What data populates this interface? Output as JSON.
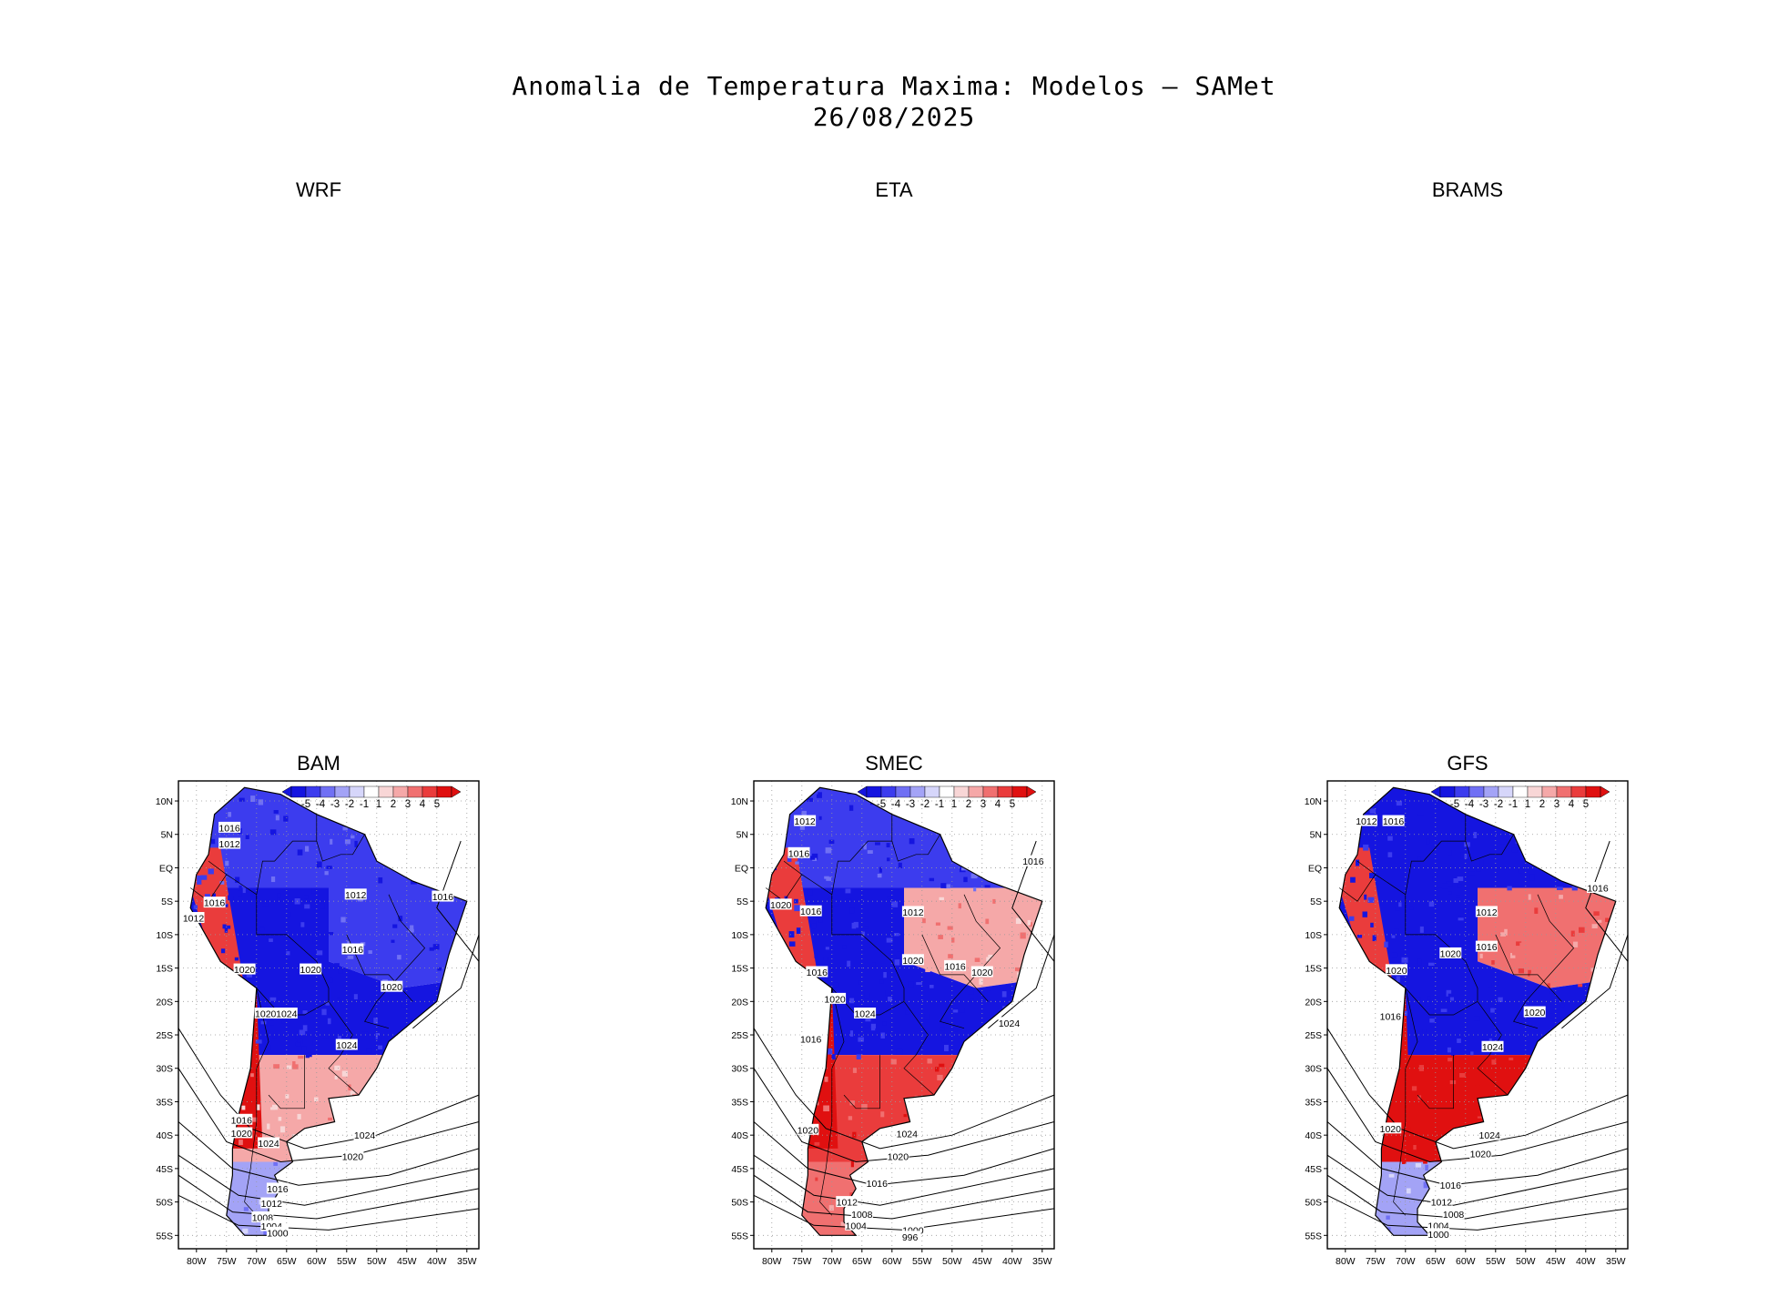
{
  "figure": {
    "title": "Anomalia de Temperatura Maxima: Modelos — SAMet",
    "date": "26/08/2025"
  },
  "colors": {
    "neg5": "#1515e0",
    "neg4": "#3c3cee",
    "neg3": "#7070f4",
    "neg2": "#a3a3f6",
    "neg1": "#d6d6fa",
    "zero": "#ffffff",
    "pos1": "#f8d6d6",
    "pos2": "#f5a8a8",
    "pos3": "#f07070",
    "pos4": "#ea3c3c",
    "pos5": "#e01010"
  },
  "chart_data": [
    {
      "type": "heatmap",
      "title": "WRF",
      "empty": true
    },
    {
      "type": "heatmap",
      "title": "ETA",
      "empty": true
    },
    {
      "type": "heatmap",
      "title": "BRAMS",
      "empty": true
    },
    {
      "type": "heatmap",
      "title": "BAM",
      "xlabel": "",
      "ylabel": "",
      "x_ticks": [
        "80W",
        "75W",
        "70W",
        "65W",
        "60W",
        "55W",
        "50W",
        "45W",
        "40W",
        "35W"
      ],
      "y_ticks": [
        "10N",
        "5N",
        "EQ",
        "5S",
        "10S",
        "15S",
        "20S",
        "25S",
        "30S",
        "35S",
        "40S",
        "45S",
        "50S",
        "55S"
      ],
      "colorbar": {
        "labels": [
          "-5",
          "-4",
          "-3",
          "-2",
          "-1",
          "1",
          "2",
          "3",
          "4",
          "5"
        ]
      },
      "xlim": [
        -83,
        -33
      ],
      "ylim": [
        -57,
        13
      ],
      "anomaly_regions": [
        {
          "name": "north-amazon",
          "anomaly": -4
        },
        {
          "name": "central-brazil",
          "anomaly": -5
        },
        {
          "name": "northeast-brazil",
          "anomaly": -4
        },
        {
          "name": "peru-coast",
          "anomaly": 4
        },
        {
          "name": "chile-andes",
          "anomaly": 5
        },
        {
          "name": "argentina-central",
          "anomaly": 2
        },
        {
          "name": "patagonia",
          "anomaly": -2
        }
      ],
      "isobars": [
        {
          "label": "1016",
          "lon": -74.5,
          "lat": 6.0
        },
        {
          "label": "1012",
          "lon": -74.5,
          "lat": 3.6
        },
        {
          "label": "1012",
          "lon": -53.5,
          "lat": -4.0
        },
        {
          "label": "1016",
          "lon": -39.0,
          "lat": -4.3
        },
        {
          "label": "1016",
          "lon": -77.0,
          "lat": -5.2
        },
        {
          "label": "1012",
          "lon": -80.5,
          "lat": -7.5
        },
        {
          "label": "1016",
          "lon": -54.0,
          "lat": -12.2
        },
        {
          "label": "1020",
          "lon": -72.0,
          "lat": -15.2
        },
        {
          "label": "1020",
          "lon": -61.0,
          "lat": -15.2
        },
        {
          "label": "1020",
          "lon": -47.5,
          "lat": -17.8
        },
        {
          "label": "1020",
          "lon": -68.5,
          "lat": -21.8
        },
        {
          "label": "1024",
          "lon": -65.0,
          "lat": -21.8
        },
        {
          "label": "1024",
          "lon": -55.0,
          "lat": -26.5
        },
        {
          "label": "1016",
          "lon": -72.5,
          "lat": -37.7
        },
        {
          "label": "1020",
          "lon": -72.5,
          "lat": -39.7
        },
        {
          "label": "1024",
          "lon": -68.0,
          "lat": -41.2
        },
        {
          "label": "1024",
          "lon": -52.0,
          "lat": -40.0
        },
        {
          "label": "1020",
          "lon": -54.0,
          "lat": -43.2
        },
        {
          "label": "1016",
          "lon": -66.5,
          "lat": -48.0
        },
        {
          "label": "1012",
          "lon": -67.5,
          "lat": -50.2
        },
        {
          "label": "1008",
          "lon": -69.0,
          "lat": -52.3
        },
        {
          "label": "1004",
          "lon": -67.5,
          "lat": -53.6
        },
        {
          "label": "1000",
          "lon": -66.5,
          "lat": -54.6
        }
      ]
    },
    {
      "type": "heatmap",
      "title": "SMEC",
      "xlabel": "",
      "ylabel": "",
      "x_ticks": [
        "80W",
        "75W",
        "70W",
        "65W",
        "60W",
        "55W",
        "50W",
        "45W",
        "40W",
        "35W"
      ],
      "y_ticks": [
        "10N",
        "5N",
        "EQ",
        "5S",
        "10S",
        "15S",
        "20S",
        "25S",
        "30S",
        "35S",
        "40S",
        "45S",
        "50S",
        "55S"
      ],
      "colorbar": {
        "labels": [
          "-5",
          "-4",
          "-3",
          "-2",
          "-1",
          "1",
          "2",
          "3",
          "4",
          "5"
        ]
      },
      "xlim": [
        -83,
        -33
      ],
      "ylim": [
        -57,
        13
      ],
      "anomaly_regions": [
        {
          "name": "north-amazon",
          "anomaly": -4
        },
        {
          "name": "central-brazil",
          "anomaly": -5
        },
        {
          "name": "northeast-brazil",
          "anomaly": 2
        },
        {
          "name": "peru-coast",
          "anomaly": 4
        },
        {
          "name": "chile-andes",
          "anomaly": 5
        },
        {
          "name": "argentina-central",
          "anomaly": 4
        },
        {
          "name": "patagonia",
          "anomaly": 3
        }
      ],
      "isobars": [
        {
          "label": "1012",
          "lon": -74.5,
          "lat": 7.0
        },
        {
          "label": "1016",
          "lon": -75.5,
          "lat": 2.2
        },
        {
          "label": "1016",
          "lon": -36.5,
          "lat": 1.0
        },
        {
          "label": "1012",
          "lon": -56.5,
          "lat": -6.6
        },
        {
          "label": "1020",
          "lon": -78.5,
          "lat": -5.5
        },
        {
          "label": "1016",
          "lon": -73.5,
          "lat": -6.5
        },
        {
          "label": "1020",
          "lon": -56.5,
          "lat": -13.8
        },
        {
          "label": "1016",
          "lon": -49.5,
          "lat": -14.7
        },
        {
          "label": "1016",
          "lon": -72.5,
          "lat": -15.6
        },
        {
          "label": "1020",
          "lon": -45.0,
          "lat": -15.6
        },
        {
          "label": "1020",
          "lon": -69.5,
          "lat": -19.6
        },
        {
          "label": "1024",
          "lon": -64.5,
          "lat": -21.8
        },
        {
          "label": "1024",
          "lon": -40.5,
          "lat": -23.2
        },
        {
          "label": "1016",
          "lon": -73.5,
          "lat": -25.6
        },
        {
          "label": "1020",
          "lon": -74.0,
          "lat": -39.2
        },
        {
          "label": "1024",
          "lon": -57.5,
          "lat": -39.8
        },
        {
          "label": "1020",
          "lon": -59.0,
          "lat": -43.2
        },
        {
          "label": "1016",
          "lon": -62.5,
          "lat": -47.2
        },
        {
          "label": "1012",
          "lon": -67.5,
          "lat": -50.0
        },
        {
          "label": "1008",
          "lon": -65.0,
          "lat": -51.8
        },
        {
          "label": "1004",
          "lon": -66.0,
          "lat": -53.5
        },
        {
          "label": "1000",
          "lon": -56.5,
          "lat": -54.2
        },
        {
          "label": "996",
          "lon": -57.0,
          "lat": -55.2
        }
      ]
    },
    {
      "type": "heatmap",
      "title": "GFS",
      "xlabel": "",
      "ylabel": "",
      "x_ticks": [
        "80W",
        "75W",
        "70W",
        "65W",
        "60W",
        "55W",
        "50W",
        "45W",
        "40W",
        "35W"
      ],
      "y_ticks": [
        "10N",
        "5N",
        "EQ",
        "5S",
        "10S",
        "15S",
        "20S",
        "25S",
        "30S",
        "35S",
        "40S",
        "45S",
        "50S",
        "55S"
      ],
      "colorbar": {
        "labels": [
          "-5",
          "-4",
          "-3",
          "-2",
          "-1",
          "1",
          "2",
          "3",
          "4",
          "5"
        ]
      },
      "xlim": [
        -83,
        -33
      ],
      "ylim": [
        -57,
        13
      ],
      "anomaly_regions": [
        {
          "name": "north-amazon",
          "anomaly": -5
        },
        {
          "name": "central-brazil",
          "anomaly": -5
        },
        {
          "name": "northeast-brazil",
          "anomaly": 3
        },
        {
          "name": "peru-coast",
          "anomaly": 4
        },
        {
          "name": "chile-andes",
          "anomaly": 5
        },
        {
          "name": "argentina-central",
          "anomaly": 5
        },
        {
          "name": "patagonia",
          "anomaly": -2
        }
      ],
      "isobars": [
        {
          "label": "1012",
          "lon": -76.5,
          "lat": 7.0
        },
        {
          "label": "1016",
          "lon": -72.0,
          "lat": 7.0
        },
        {
          "label": "1016",
          "lon": -38.0,
          "lat": -3.0
        },
        {
          "label": "1012",
          "lon": -56.5,
          "lat": -6.6
        },
        {
          "label": "1020",
          "lon": -62.5,
          "lat": -12.8
        },
        {
          "label": "1016",
          "lon": -56.5,
          "lat": -11.8
        },
        {
          "label": "1020",
          "lon": -71.5,
          "lat": -15.3
        },
        {
          "label": "1020",
          "lon": -48.5,
          "lat": -21.6
        },
        {
          "label": "1016",
          "lon": -72.5,
          "lat": -22.2
        },
        {
          "label": "1024",
          "lon": -55.5,
          "lat": -26.8
        },
        {
          "label": "1020",
          "lon": -72.5,
          "lat": -39.0
        },
        {
          "label": "1024",
          "lon": -56.0,
          "lat": -40.0
        },
        {
          "label": "1020",
          "lon": -57.5,
          "lat": -42.8
        },
        {
          "label": "1016",
          "lon": -62.5,
          "lat": -47.5
        },
        {
          "label": "1012",
          "lon": -64.0,
          "lat": -50.0
        },
        {
          "label": "1008",
          "lon": -62.0,
          "lat": -51.8
        },
        {
          "label": "1004",
          "lon": -64.5,
          "lat": -53.5
        },
        {
          "label": "1000",
          "lon": -64.5,
          "lat": -54.8
        }
      ]
    }
  ]
}
